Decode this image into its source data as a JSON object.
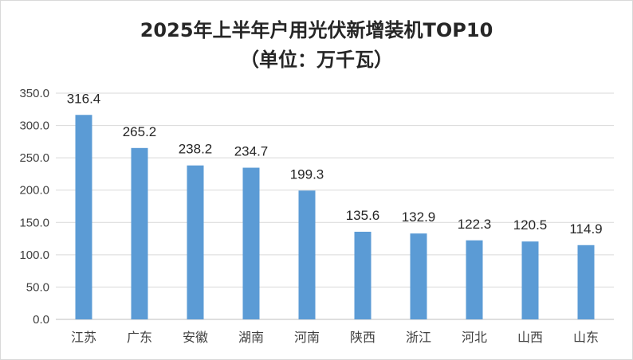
{
  "chart_data": {
    "type": "bar",
    "title": "2025年上半年户用光伏新增装机TOP10",
    "subtitle": "（单位：万千瓦）",
    "categories": [
      "江苏",
      "广东",
      "安徽",
      "湖南",
      "河南",
      "陕西",
      "浙江",
      "河北",
      "山西",
      "山东"
    ],
    "values": [
      316.4,
      265.2,
      238.2,
      234.7,
      199.3,
      135.6,
      132.9,
      122.3,
      120.5,
      114.9
    ],
    "value_labels": [
      "316.4",
      "265.2",
      "238.2",
      "234.7",
      "199.3",
      "135.6",
      "132.9",
      "122.3",
      "120.5",
      "114.9"
    ],
    "yticks": [
      "0.0",
      "50.0",
      "100.0",
      "150.0",
      "200.0",
      "250.0",
      "300.0",
      "350.0"
    ],
    "ylim": [
      0,
      350
    ],
    "grid": true,
    "bar_color": "#5b9bd5"
  }
}
